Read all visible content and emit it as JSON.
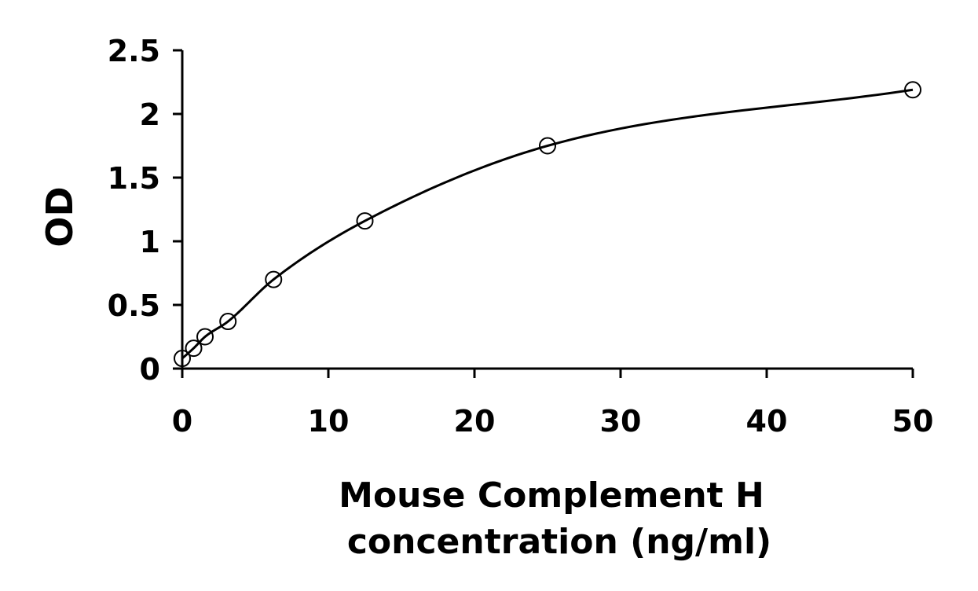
{
  "chart_data": {
    "type": "scatter",
    "title": "",
    "xlabel_lines": [
      "Mouse Complement H",
      "concentration (ng/ml)"
    ],
    "ylabel": "OD",
    "xlim": [
      0,
      50
    ],
    "ylim": [
      0,
      2.5
    ],
    "x_ticks": [
      0,
      10,
      20,
      30,
      40,
      50
    ],
    "x_tick_labels": [
      "0",
      "10",
      "20",
      "30",
      "40",
      "50"
    ],
    "y_ticks": [
      0,
      0.5,
      1,
      1.5,
      2,
      2.5
    ],
    "y_tick_labels": [
      "0",
      "0.5",
      "1",
      "1.5",
      "2",
      "2.5"
    ],
    "grid": false,
    "legend": "none",
    "marker": "open-circle",
    "trendline": "smooth-curve",
    "series": [
      {
        "x": [
          0,
          0.78,
          1.56,
          3.13,
          6.25,
          12.5,
          25,
          50
        ],
        "y": [
          0.08,
          0.16,
          0.25,
          0.37,
          0.7,
          1.16,
          1.75,
          2.19
        ]
      }
    ],
    "colors": {
      "axis": "#000000",
      "marker_stroke": "#000000",
      "curve": "#000000"
    }
  }
}
